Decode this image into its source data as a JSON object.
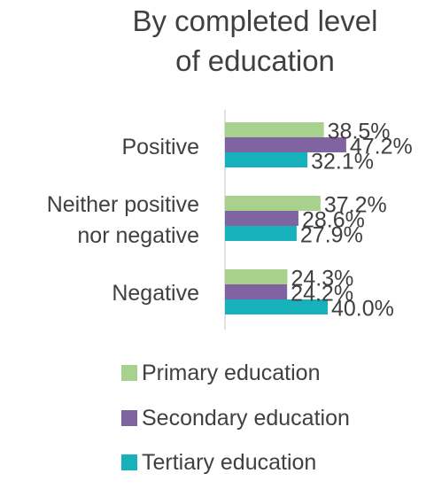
{
  "chart_data": {
    "type": "bar",
    "orientation": "horizontal",
    "title": "By completed level of education",
    "categories": [
      "Positive",
      "Neither positive nor negative",
      "Negative"
    ],
    "series": [
      {
        "name": "Primary education",
        "values": [
          38.5,
          37.2,
          24.3
        ],
        "labels": [
          "38.5%",
          "37.2%",
          "24.3%"
        ],
        "color": "#A9D18E"
      },
      {
        "name": "Secondary education",
        "values": [
          47.2,
          28.6,
          24.2
        ],
        "labels": [
          "47.2%",
          "28.6%",
          "24.2%"
        ],
        "color": "#8064A2"
      },
      {
        "name": "Tertiary education",
        "values": [
          32.1,
          27.9,
          40.0
        ],
        "labels": [
          "32.1%",
          "27.9%",
          "40.0%"
        ],
        "color": "#17B1BC"
      }
    ],
    "xlim": [
      0,
      100
    ],
    "grid": false,
    "legend_position": "bottom"
  }
}
